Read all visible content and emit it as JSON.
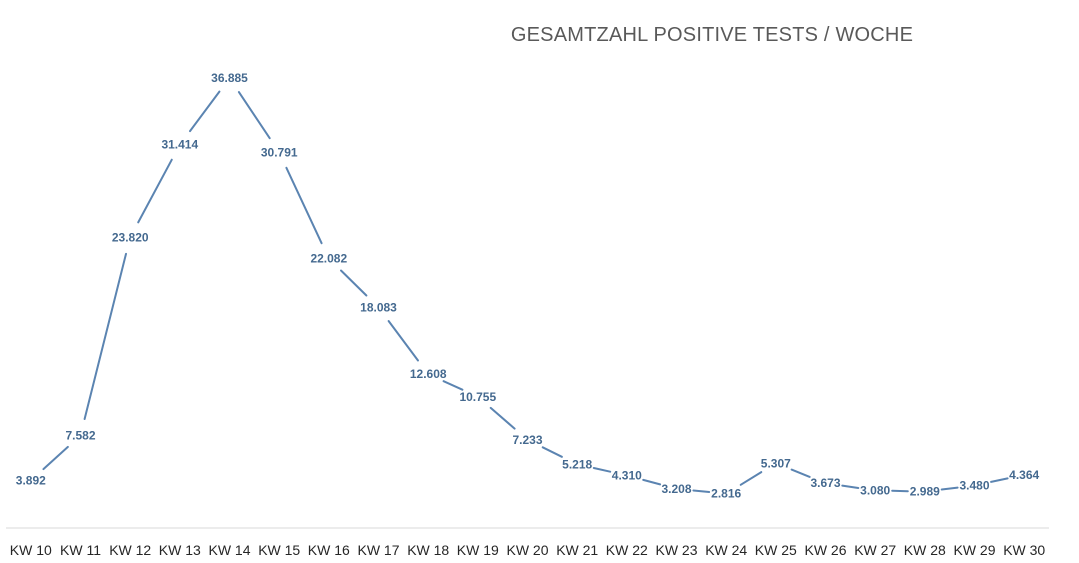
{
  "chart_data": {
    "type": "line",
    "title": "GESAMTZAHL POSITIVE TESTS / WOCHE",
    "xlabel": "",
    "ylabel": "",
    "categories": [
      "KW 10",
      "KW 11",
      "KW 12",
      "KW 13",
      "KW 14",
      "KW 15",
      "KW 16",
      "KW 17",
      "KW 18",
      "KW 19",
      "KW 20",
      "KW 21",
      "KW 22",
      "KW 23",
      "KW 24",
      "KW 25",
      "KW 26",
      "KW 27",
      "KW 28",
      "KW 29",
      "KW 30"
    ],
    "values": [
      3892,
      7582,
      23820,
      31414,
      36885,
      30791,
      22082,
      18083,
      12608,
      10755,
      7233,
      5218,
      4310,
      3208,
      2816,
      5307,
      3673,
      3080,
      2989,
      3480,
      4364
    ],
    "value_labels": [
      "3.892",
      "7.582",
      "23.820",
      "31.414",
      "36.885",
      "30.791",
      "22.082",
      "18.083",
      "12.608",
      "10.755",
      "7.233",
      "5.218",
      "4.310",
      "3.208",
      "2.816",
      "5.307",
      "3.673",
      "3.080",
      "2.989",
      "3.480",
      "4.364"
    ],
    "ylim": [
      0,
      40000
    ],
    "grid": false,
    "legend": "none",
    "colors": {
      "line": "#5b84b1",
      "data_label": "#44698f",
      "axis": "#d9d9d9",
      "tick_label": "#262626",
      "title": "#595959"
    }
  }
}
